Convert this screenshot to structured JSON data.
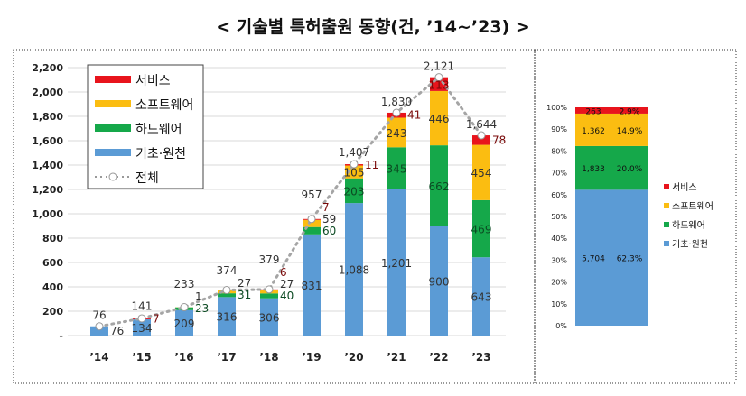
{
  "title": "< 기술별 특허출원 동향(건, ’14~’23) >",
  "colors": {
    "서비스": "#e8141c",
    "소프트웨어": "#fbbd11",
    "하드웨어": "#15a84a",
    "기초·원천": "#5b9bd5",
    "전체": "#a5a5a5"
  },
  "chart_data": [
    {
      "type": "bar",
      "stacked": true,
      "categories": [
        "’14",
        "’15",
        "’16",
        "’17",
        "’18",
        "’19",
        "’20",
        "’21",
        "’22",
        "’23"
      ],
      "series": [
        {
          "name": "기초·원천",
          "values": [
            76,
            134,
            209,
            316,
            306,
            831,
            1088,
            1201,
            900,
            643
          ]
        },
        {
          "name": "하드웨어",
          "values": [
            0,
            0,
            23,
            31,
            40,
            60,
            203,
            345,
            662,
            469
          ]
        },
        {
          "name": "소프트웨어",
          "values": [
            0,
            0,
            1,
            27,
            27,
            59,
            105,
            243,
            446,
            454
          ]
        },
        {
          "name": "서비스",
          "values": [
            0,
            7,
            0,
            0,
            6,
            7,
            11,
            41,
            113,
            78
          ]
        }
      ],
      "line_series": {
        "name": "전체",
        "type": "line",
        "style": "dotted with circle markers",
        "values": [
          76,
          141,
          233,
          374,
          379,
          957,
          1407,
          1830,
          2121,
          1644
        ]
      },
      "ylim": [
        0,
        2200
      ],
      "yticks": [
        0,
        200,
        400,
        600,
        800,
        1000,
        1200,
        1400,
        1600,
        1800,
        2000,
        2200
      ],
      "ytick_labels": [
        "-",
        "200",
        "400",
        "600",
        "800",
        "1,000",
        "1,200",
        "1,400",
        "1,600",
        "1,800",
        "2,000",
        "2,200"
      ],
      "grid": true,
      "legend": {
        "placement": "top-left",
        "entries": [
          "서비스",
          "소프트웨어",
          "하드웨어",
          "기초·원천",
          "전체"
        ]
      }
    },
    {
      "type": "bar",
      "stacked": true,
      "percent": true,
      "series": [
        {
          "name": "기초·원천",
          "value": 5704,
          "value_label": "5,704",
          "percent_label": "62.3%"
        },
        {
          "name": "하드웨어",
          "value": 1833,
          "value_label": "1,833",
          "percent_label": "20.0%"
        },
        {
          "name": "소프트웨어",
          "value": 1362,
          "value_label": "1,362",
          "percent_label": "14.9%"
        },
        {
          "name": "서비스",
          "value": 263,
          "value_label": "263",
          "percent_label": "2.9%"
        }
      ],
      "ylim": [
        0,
        100
      ],
      "ytick_labels": [
        "0%",
        "10%",
        "20%",
        "30%",
        "40%",
        "50%",
        "60%",
        "70%",
        "80%",
        "90%",
        "100%"
      ],
      "legend": {
        "placement": "right",
        "entries": [
          "서비스",
          "소프트웨어",
          "하드웨어",
          "기초·원천"
        ]
      }
    }
  ]
}
